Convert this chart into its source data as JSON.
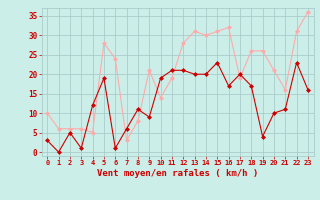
{
  "x": [
    0,
    1,
    2,
    3,
    4,
    5,
    6,
    7,
    8,
    9,
    10,
    11,
    12,
    13,
    14,
    15,
    16,
    17,
    18,
    19,
    20,
    21,
    22,
    23
  ],
  "vent_moyen": [
    3,
    0,
    5,
    1,
    12,
    19,
    1,
    6,
    11,
    9,
    19,
    21,
    21,
    20,
    20,
    23,
    17,
    20,
    17,
    4,
    10,
    11,
    23,
    16
  ],
  "rafales": [
    10,
    6,
    6,
    6,
    5,
    28,
    24,
    3,
    8,
    21,
    14,
    19,
    28,
    31,
    30,
    31,
    32,
    19,
    26,
    26,
    21,
    16,
    31,
    36
  ],
  "color_moyen": "#cc0000",
  "color_rafales": "#ffaaaa",
  "bg_color": "#cceee8",
  "grid_color": "#aacccc",
  "xlabel": "Vent moyen/en rafales ( km/h )",
  "xlabel_color": "#cc0000",
  "tick_color": "#cc0000",
  "ylim": [
    -1,
    37
  ],
  "yticks": [
    0,
    5,
    10,
    15,
    20,
    25,
    30,
    35
  ],
  "xlim": [
    -0.5,
    23.5
  ]
}
